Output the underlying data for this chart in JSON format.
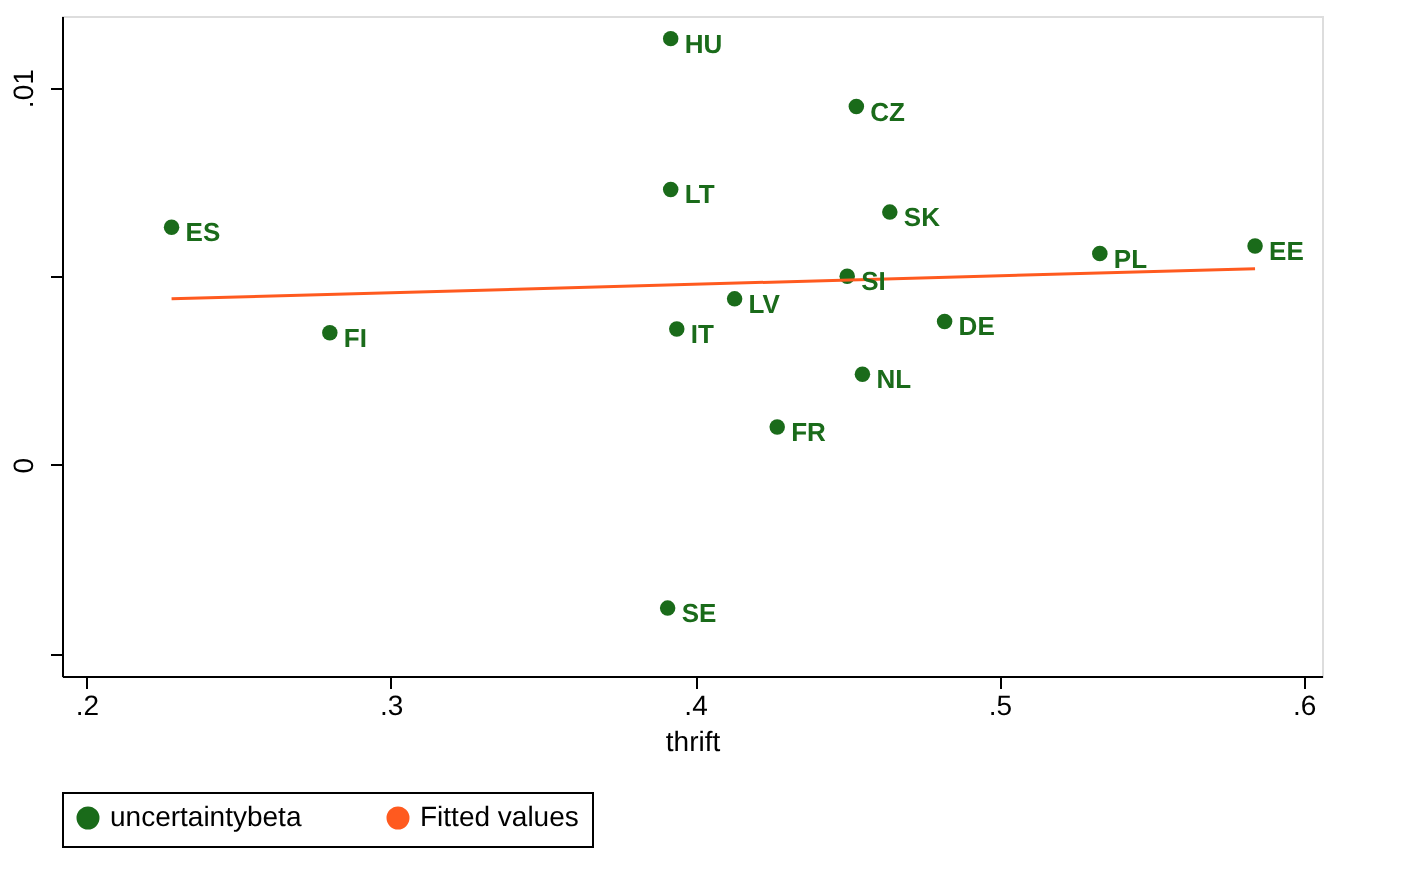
{
  "chart_data": {
    "type": "scatter",
    "xlabel": "thrift",
    "legend": "bottom",
    "grid": false,
    "xlim": [
      0.192,
      0.606
    ],
    "ylim": [
      -0.0056,
      0.0119
    ],
    "xticks": [
      {
        "value": 0.2,
        "label": ".2"
      },
      {
        "value": 0.3,
        "label": ".3"
      },
      {
        "value": 0.4,
        "label": ".4"
      },
      {
        "value": 0.5,
        "label": ".5"
      },
      {
        "value": 0.6,
        "label": ".6"
      }
    ],
    "yticks": [
      {
        "value": -0.005,
        "label": null
      },
      0,
      {
        "value": 0.005,
        "label": null
      },
      {
        "value": 0.01,
        "label": ".01"
      }
    ],
    "series": [
      {
        "name": "uncertaintybeta",
        "marker": "circle",
        "color": "#1a6b1a",
        "x": [
          0.392,
          0.453,
          0.392,
          0.228,
          0.464,
          0.533,
          0.584,
          0.45,
          0.413,
          0.482,
          0.28,
          0.394,
          0.455,
          0.427,
          0.391
        ],
        "values": [
          0.0113,
          0.0095,
          0.0073,
          0.0063,
          0.0067,
          0.0056,
          0.0058,
          0.005,
          0.0044,
          0.0038,
          0.0035,
          0.0036,
          0.0024,
          0.001,
          -0.0038
        ]
      },
      {
        "name": "Fitted values",
        "type": "line",
        "marker": "none",
        "line_style": "solid",
        "color": "#ff5a1f",
        "x": [
          0.228,
          0.584
        ],
        "values": [
          0.0044,
          0.0052
        ]
      }
    ],
    "annotations": [
      {
        "text": "HU",
        "x": 0.392,
        "y": 0.0113
      },
      {
        "text": "CZ",
        "x": 0.453,
        "y": 0.0095
      },
      {
        "text": "LT",
        "x": 0.392,
        "y": 0.0073
      },
      {
        "text": "ES",
        "x": 0.228,
        "y": 0.0063
      },
      {
        "text": "SK",
        "x": 0.464,
        "y": 0.0067
      },
      {
        "text": "PL",
        "x": 0.533,
        "y": 0.0056
      },
      {
        "text": "EE",
        "x": 0.584,
        "y": 0.0058
      },
      {
        "text": "SI",
        "x": 0.45,
        "y": 0.005
      },
      {
        "text": "LV",
        "x": 0.413,
        "y": 0.0044
      },
      {
        "text": "DE",
        "x": 0.482,
        "y": 0.0038
      },
      {
        "text": "FI",
        "x": 0.28,
        "y": 0.0035
      },
      {
        "text": "IT",
        "x": 0.394,
        "y": 0.0036
      },
      {
        "text": "NL",
        "x": 0.455,
        "y": 0.0024
      },
      {
        "text": "FR",
        "x": 0.427,
        "y": 0.001
      },
      {
        "text": "SE",
        "x": 0.391,
        "y": -0.0038
      }
    ]
  }
}
